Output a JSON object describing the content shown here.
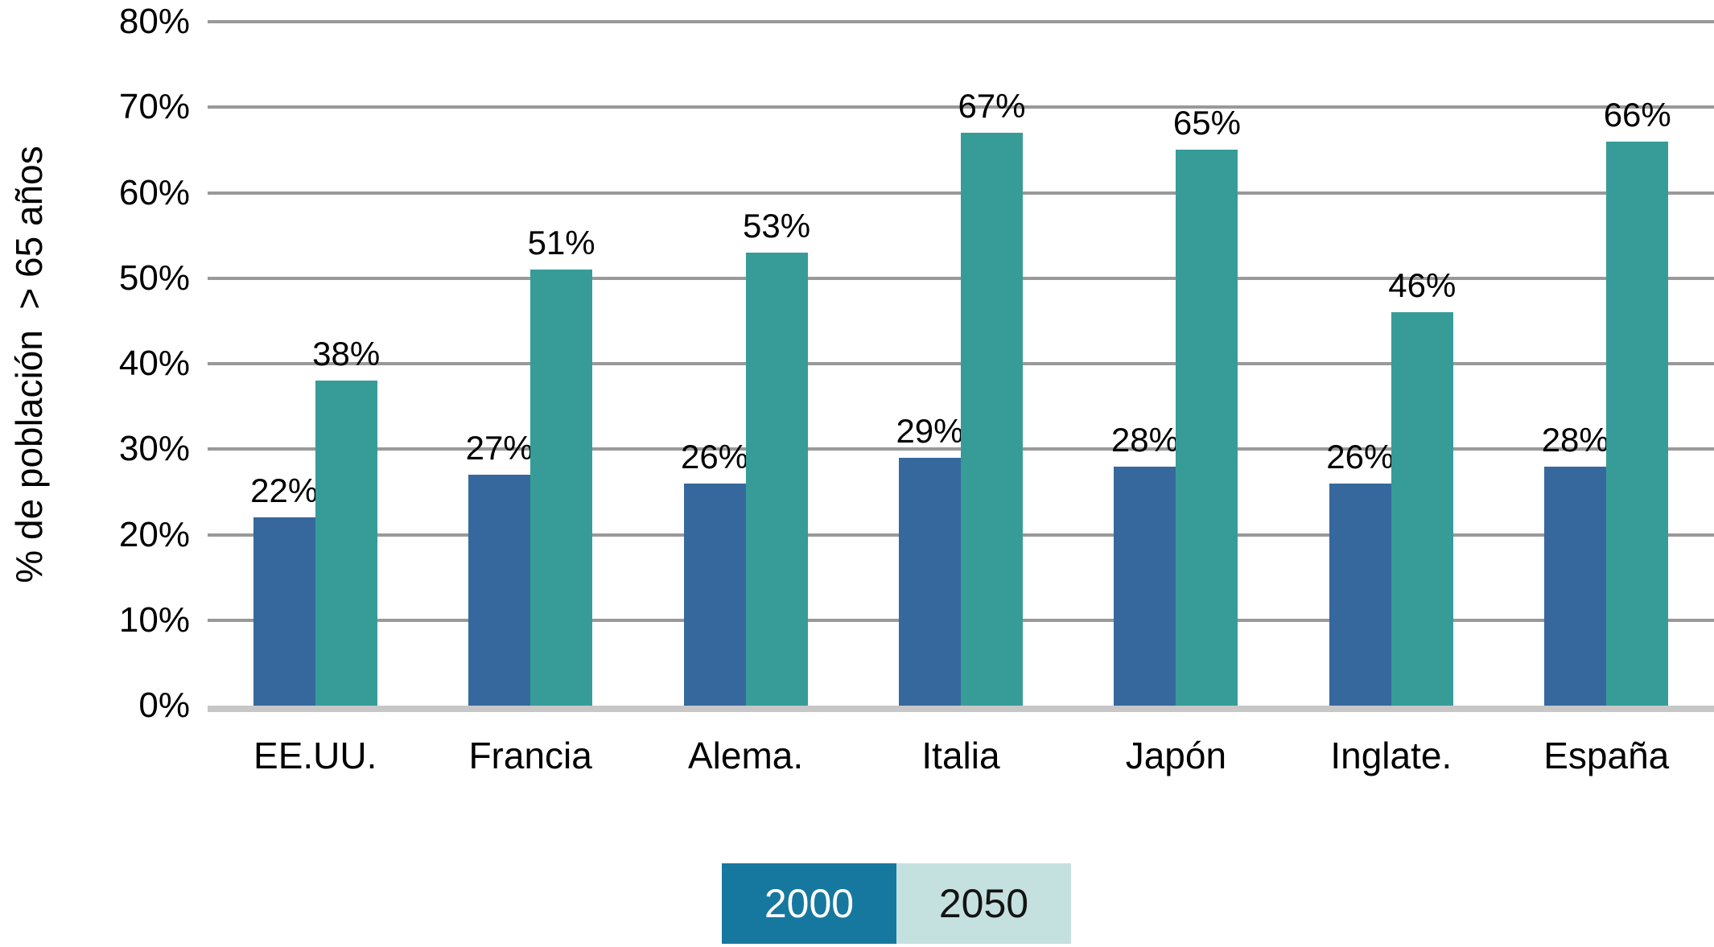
{
  "chart_data": {
    "type": "bar",
    "title": "",
    "ylabel": "% de población  > 65 años",
    "xlabel": "",
    "categories": [
      "EE.UU.",
      "Francia",
      "Alema.",
      "Italia",
      "Japón",
      "Inglate.",
      "España"
    ],
    "series": [
      {
        "name": "2000",
        "values": [
          22,
          27,
          26,
          29,
          28,
          26,
          28
        ],
        "bar_color": "#36689E",
        "legend_bg": "#17789F",
        "legend_text": "#FFFFFF"
      },
      {
        "name": "2050",
        "values": [
          38,
          51,
          53,
          67,
          65,
          46,
          66
        ],
        "bar_color": "#379C98",
        "legend_bg": "#C5E1DF",
        "legend_text": "#141414"
      }
    ],
    "ylim": [
      0,
      80
    ],
    "yticks": [
      {
        "value": 0,
        "label": "0%"
      },
      {
        "value": 10,
        "label": "10%"
      },
      {
        "value": 20,
        "label": "20%"
      },
      {
        "value": 30,
        "label": "30%"
      },
      {
        "value": 40,
        "label": "40%"
      },
      {
        "value": 50,
        "label": "50%"
      },
      {
        "value": 60,
        "label": "60%"
      },
      {
        "value": 70,
        "label": "70%"
      },
      {
        "value": 80,
        "label": "80%"
      }
    ],
    "data_label_suffix": "%",
    "grid": true,
    "legend_position": "bottom-center",
    "colors": {
      "gridline": "#999999",
      "baseline": "#C7C7C7",
      "text": "#000000",
      "background": "#FFFFFF"
    }
  }
}
